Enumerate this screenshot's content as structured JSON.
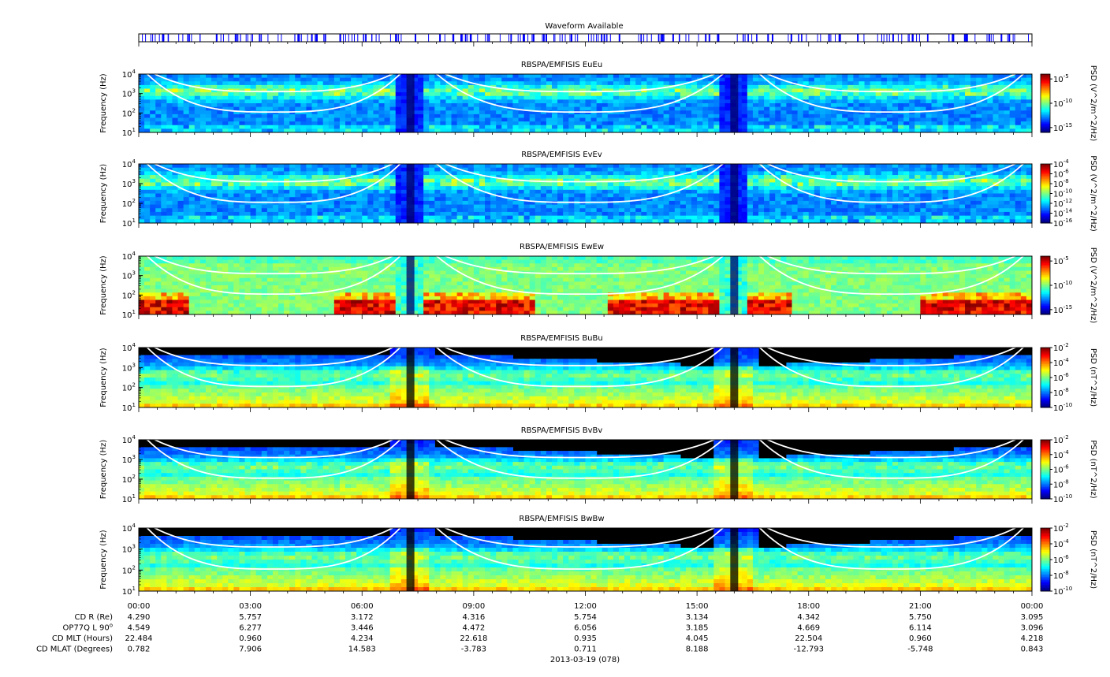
{
  "chart_data": [
    {
      "type": "timeline",
      "title": "Waveform Available",
      "color": "#0000ff"
    },
    {
      "type": "heatmap",
      "title": "RBSPA/EMFISIS  EuEu",
      "ylabel": "Frequency (Hz)",
      "ylog": true,
      "ylim": [
        10,
        10000
      ],
      "yticks": [
        "10",
        "10",
        "10",
        "10"
      ],
      "ytick_exps": [
        "1",
        "2",
        "3",
        "4"
      ],
      "colorbar": {
        "label": "PSD (V^2/m^2/Hz)",
        "ticks": [
          "10",
          "10",
          "10"
        ],
        "tick_exps": [
          "-5",
          "-10",
          "-15"
        ],
        "range_log": [
          -16,
          -4
        ]
      },
      "style": "electric-low",
      "overlay": "white frequency curves"
    },
    {
      "type": "heatmap",
      "title": "RBSPA/EMFISIS  EvEv",
      "ylabel": "Frequency (Hz)",
      "ylog": true,
      "ylim": [
        10,
        10000
      ],
      "yticks": [
        "10",
        "10",
        "10",
        "10"
      ],
      "ytick_exps": [
        "1",
        "2",
        "3",
        "4"
      ],
      "colorbar": {
        "label": "PSD (V^2/m^2/Hz)",
        "ticks": [
          "10",
          "10",
          "10",
          "10",
          "10",
          "10",
          "10"
        ],
        "tick_exps": [
          "-4",
          "-6",
          "-8",
          "-10",
          "-12",
          "-14",
          "-16"
        ],
        "range_log": [
          -16,
          -4
        ]
      },
      "style": "electric-low",
      "overlay": "white frequency curves"
    },
    {
      "type": "heatmap",
      "title": "RBSPA/EMFISIS  EwEw",
      "ylabel": "Frequency (Hz)",
      "ylog": true,
      "ylim": [
        10,
        10000
      ],
      "yticks": [
        "10",
        "10",
        "10",
        "10"
      ],
      "ytick_exps": [
        "1",
        "2",
        "3",
        "4"
      ],
      "colorbar": {
        "label": "PSD (V^2/m^2/Hz)",
        "ticks": [
          "10",
          "10",
          "10"
        ],
        "tick_exps": [
          "-5",
          "-10",
          "-15"
        ],
        "range_log": [
          -16,
          -4
        ]
      },
      "style": "electric-high",
      "overlay": "white frequency curves"
    },
    {
      "type": "heatmap",
      "title": "RBSPA/EMFISIS  BuBu",
      "ylabel": "Frequency (Hz)",
      "ylog": true,
      "ylim": [
        10,
        10000
      ],
      "yticks": [
        "10",
        "10",
        "10",
        "10"
      ],
      "ytick_exps": [
        "1",
        "2",
        "3",
        "4"
      ],
      "colorbar": {
        "label": "PSD (nT^2/Hz)",
        "ticks": [
          "10",
          "10",
          "10",
          "10",
          "10"
        ],
        "tick_exps": [
          "-2",
          "-4",
          "-6",
          "-8",
          "-10"
        ],
        "range_log": [
          -10,
          -2
        ]
      },
      "style": "magnetic",
      "overlay": "white frequency curves"
    },
    {
      "type": "heatmap",
      "title": "RBSPA/EMFISIS  BvBv",
      "ylabel": "Frequency (Hz)",
      "ylog": true,
      "ylim": [
        10,
        10000
      ],
      "yticks": [
        "10",
        "10",
        "10",
        "10"
      ],
      "ytick_exps": [
        "1",
        "2",
        "3",
        "4"
      ],
      "colorbar": {
        "label": "PSD (nT^2/Hz)",
        "ticks": [
          "10",
          "10",
          "10",
          "10",
          "10"
        ],
        "tick_exps": [
          "-2",
          "-4",
          "-6",
          "-8",
          "-10"
        ],
        "range_log": [
          -10,
          -2
        ]
      },
      "style": "magnetic",
      "overlay": "white frequency curves"
    },
    {
      "type": "heatmap",
      "title": "RBSPA/EMFISIS  BwBw",
      "ylabel": "Frequency (Hz)",
      "ylog": true,
      "ylim": [
        10,
        10000
      ],
      "yticks": [
        "10",
        "10",
        "10",
        "10"
      ],
      "ytick_exps": [
        "1",
        "2",
        "3",
        "4"
      ],
      "colorbar": {
        "label": "PSD (nT^2/Hz)",
        "ticks": [
          "10",
          "10",
          "10",
          "10",
          "10"
        ],
        "tick_exps": [
          "-2",
          "-4",
          "-6",
          "-8",
          "-10"
        ],
        "range_log": [
          -10,
          -2
        ]
      },
      "style": "magnetic",
      "overlay": "white frequency curves"
    }
  ],
  "x_axis": {
    "xlim_hours": [
      0,
      24
    ],
    "tick_hours": [
      0,
      3,
      6,
      9,
      12,
      15,
      18,
      21,
      24
    ],
    "tick_labels": [
      "00:00",
      "03:00",
      "06:00",
      "09:00",
      "12:00",
      "15:00",
      "18:00",
      "21:00",
      "00:00"
    ],
    "date_label": "2013-03-19 (078)"
  },
  "ephemeris": {
    "rows": [
      {
        "label": "CD R (Re)",
        "values": [
          "4.290",
          "5.757",
          "3.172",
          "4.316",
          "5.754",
          "3.134",
          "4.342",
          "5.750",
          "3.095"
        ]
      },
      {
        "label": "OP77Q L 90",
        "sup": "o",
        "values": [
          "4.549",
          "6.277",
          "3.446",
          "4.472",
          "6.056",
          "3.185",
          "4.669",
          "6.114",
          "3.096"
        ]
      },
      {
        "label": "CD MLT (Hours)",
        "values": [
          "22.484",
          "0.960",
          "4.234",
          "22.618",
          "0.935",
          "4.045",
          "22.504",
          "0.960",
          "4.218"
        ]
      },
      {
        "label": "CD MLAT (Degrees)",
        "values": [
          "0.782",
          "7.906",
          "14.583",
          "-3.783",
          "0.711",
          "8.188",
          "-12.793",
          "-5.748",
          "0.843"
        ]
      }
    ]
  },
  "colors": {
    "grid_line": "#ffffff",
    "magnetic_background": "#000000"
  }
}
